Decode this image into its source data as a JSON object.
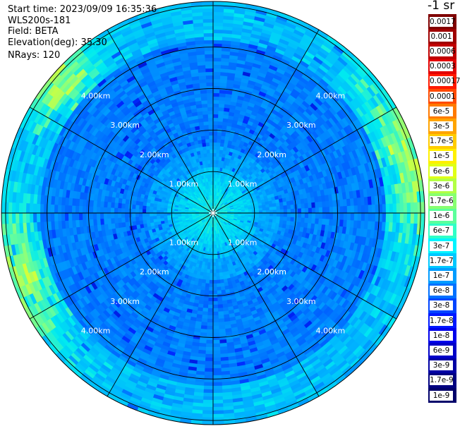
{
  "header": {
    "start_time": "Start time: 2023/09/09 16:35:36",
    "instrument": "WLS200s-181",
    "field": "Field: BETA",
    "elevation": "Elevation(deg): 35.30",
    "nrays": "NRays: 120"
  },
  "colorbar": {
    "unit_label": "-1 sr",
    "ticks": [
      "0.0017",
      "0.001",
      "0.0006",
      "0.0003",
      "0.00017",
      "0.0001",
      "6e-5",
      "3e-5",
      "1.7e-5",
      "1e-5",
      "6e-6",
      "3e-6",
      "1.7e-6",
      "1e-6",
      "6e-7",
      "3e-7",
      "1.7e-7",
      "1e-7",
      "6e-8",
      "3e-8",
      "1.7e-8",
      "1e-8",
      "6e-9",
      "3e-9",
      "1.7e-9",
      "1e-9"
    ],
    "colors": [
      "#7f0000",
      "#9f0000",
      "#c00000",
      "#e30000",
      "#ff1a00",
      "#ff4a00",
      "#ff7a00",
      "#ffa400",
      "#ffcc00",
      "#fff000",
      "#e0ff17",
      "#b3ff44",
      "#88ff70",
      "#5cff9b",
      "#30ffc7",
      "#00f4ff",
      "#00c8ff",
      "#009cff",
      "#0070ff",
      "#0044ff",
      "#0018ff",
      "#0000ec",
      "#0000c8",
      "#0000a4",
      "#000080",
      "#00006a"
    ]
  },
  "chart_data": {
    "type": "heatmap",
    "projection": "polar-ppi",
    "field": "BETA",
    "n_rays": 120,
    "elevation_deg": 35.3,
    "range_rings_km": [
      1,
      2,
      3,
      4,
      5
    ],
    "ring_labels": [
      "1.00km",
      "2.00km",
      "3.00km",
      "4.00km"
    ],
    "max_range_km": 5.1,
    "radial_spokes_deg": [
      0,
      30,
      60,
      90,
      120,
      150,
      180,
      210,
      240,
      270,
      300,
      330
    ],
    "gridlines": true,
    "value_range": [
      "1e-9",
      "0.0017"
    ]
  }
}
